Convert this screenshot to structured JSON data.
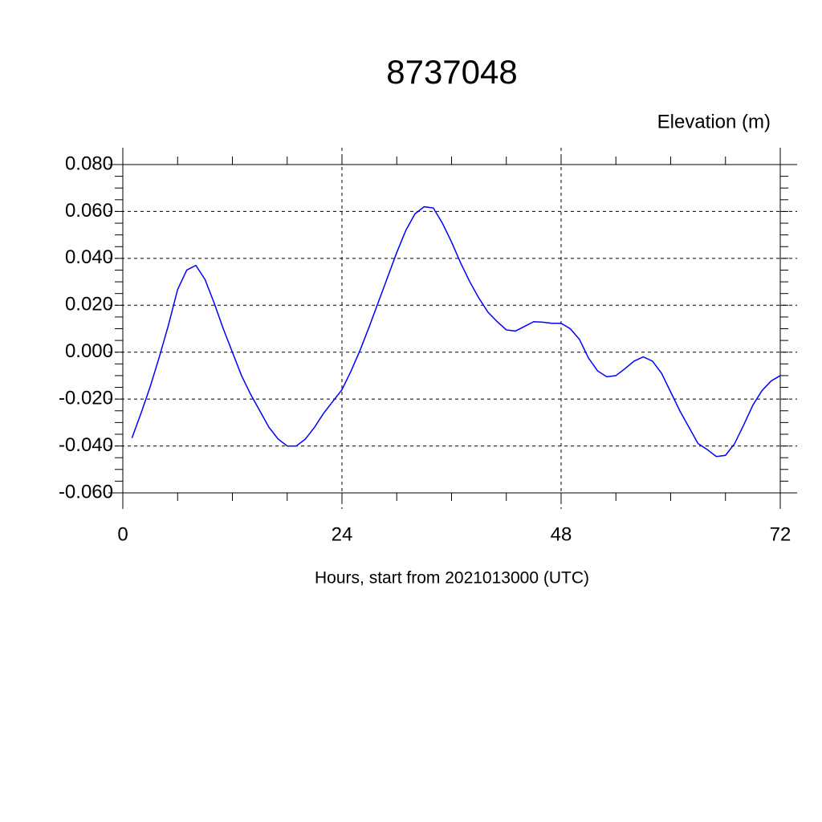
{
  "chart_data": {
    "type": "line",
    "title": "8737048",
    "y_label": "Elevation (m)",
    "x_label": "Hours, start from 2021013000 (UTC)",
    "x": [
      1,
      2,
      3,
      4,
      5,
      6,
      7,
      8,
      9,
      10,
      11,
      12,
      13,
      14,
      15,
      16,
      17,
      18,
      19,
      20,
      21,
      22,
      23,
      24,
      25,
      26,
      27,
      28,
      29,
      30,
      31,
      32,
      33,
      34,
      35,
      36,
      37,
      38,
      39,
      40,
      41,
      42,
      43,
      44,
      45,
      46,
      47,
      48,
      49,
      50,
      51,
      52,
      53,
      54,
      55,
      56,
      57,
      58,
      59,
      60,
      61,
      62,
      63,
      64,
      65,
      66,
      67,
      68,
      69,
      70,
      71,
      72
    ],
    "series": [
      {
        "name": "Elevation",
        "color": "#0000ff",
        "values": [
          -0.0366,
          -0.026,
          -0.0147,
          -0.002,
          0.0116,
          0.0267,
          0.035,
          0.037,
          0.031,
          0.021,
          0.01,
          0.0,
          -0.01,
          -0.018,
          -0.025,
          -0.032,
          -0.037,
          -0.04,
          -0.04,
          -0.037,
          -0.032,
          -0.026,
          -0.021,
          -0.016,
          -0.008,
          0.001,
          0.011,
          0.0215,
          0.032,
          0.0425,
          0.052,
          0.059,
          0.062,
          0.0615,
          0.055,
          0.047,
          0.038,
          0.03,
          0.023,
          0.017,
          0.013,
          0.0095,
          0.009,
          0.011,
          0.013,
          0.0128,
          0.0123,
          0.0123,
          0.01,
          0.0055,
          -0.0025,
          -0.008,
          -0.0105,
          -0.01,
          -0.007,
          -0.0038,
          -0.002,
          -0.0038,
          -0.009,
          -0.017,
          -0.025,
          -0.032,
          -0.039,
          -0.0415,
          -0.0445,
          -0.044,
          -0.039,
          -0.031,
          -0.0226,
          -0.0164,
          -0.0123,
          -0.01
        ]
      }
    ],
    "xlim": [
      0,
      72
    ],
    "xticks": [
      0,
      24,
      48,
      72
    ],
    "ylim": [
      -0.06,
      0.08
    ],
    "yticks": [
      {
        "value": -0.06,
        "label": "-0.060"
      },
      {
        "value": -0.04,
        "label": "-0.040"
      },
      {
        "value": -0.02,
        "label": "-0.020"
      },
      {
        "value": 0,
        "label": "0.000"
      },
      {
        "value": 0.02,
        "label": "0.020"
      },
      {
        "value": 0.04,
        "label": "0.040"
      },
      {
        "value": 0.06,
        "label": "0.060"
      },
      {
        "value": 0.08,
        "label": "0.080"
      }
    ],
    "grid": true
  }
}
